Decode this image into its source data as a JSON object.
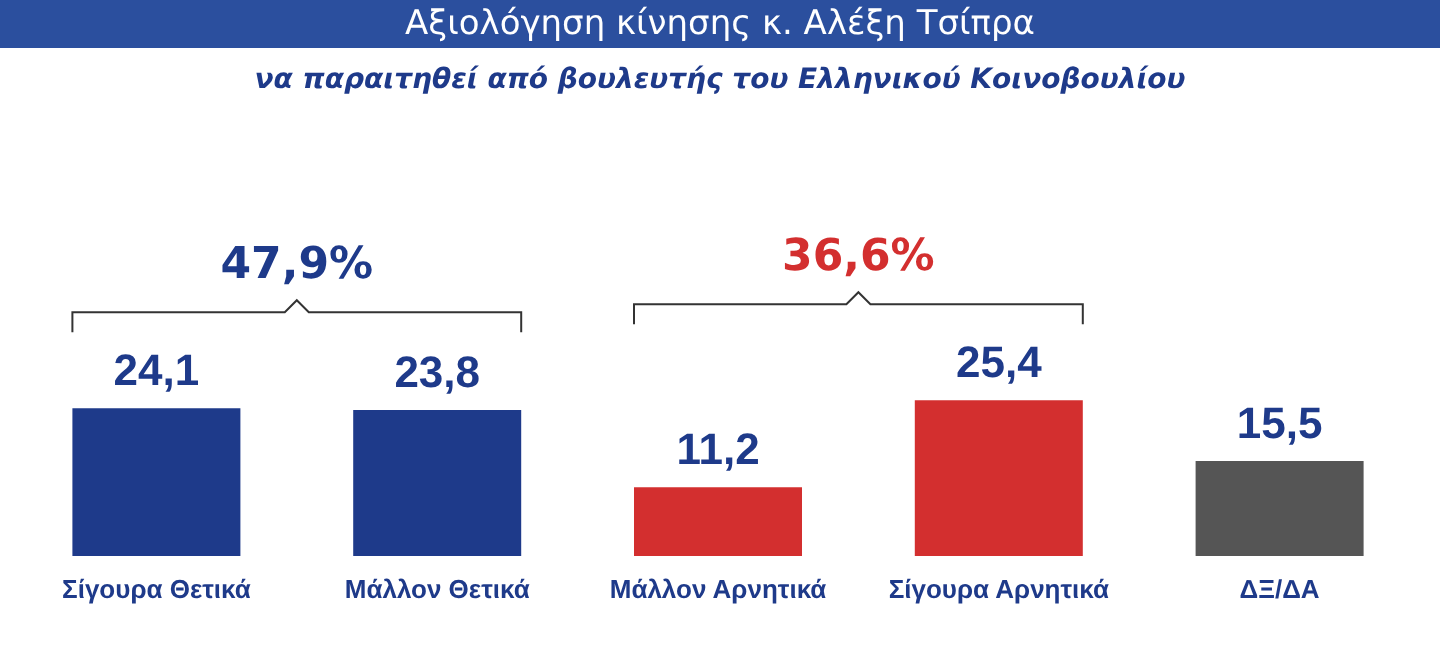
{
  "chart_data": {
    "type": "bar",
    "title": "Αξιολόγηση κίνησης κ. Αλέξη Τσίπρα",
    "subtitle": "να παραιτηθεί από βουλευτής του Ελληνικού Κοινοβουλίου",
    "categories": [
      "Σίγουρα Θετικά",
      "Μάλλον Θετικά",
      "Μάλλον Αρνητικά",
      "Σίγουρα Αρνητικά",
      "ΔΞ/ΔΑ"
    ],
    "values": [
      24.1,
      23.8,
      11.2,
      25.4,
      15.5
    ],
    "value_labels": [
      "24,1",
      "23,8",
      "11,2",
      "25,4",
      "15,5"
    ],
    "colors": [
      "#1e3a8a",
      "#1e3a8a",
      "#d32f2f",
      "#d32f2f",
      "#555555"
    ],
    "annotations": [
      "47,9%",
      "36,6%"
    ]
  }
}
